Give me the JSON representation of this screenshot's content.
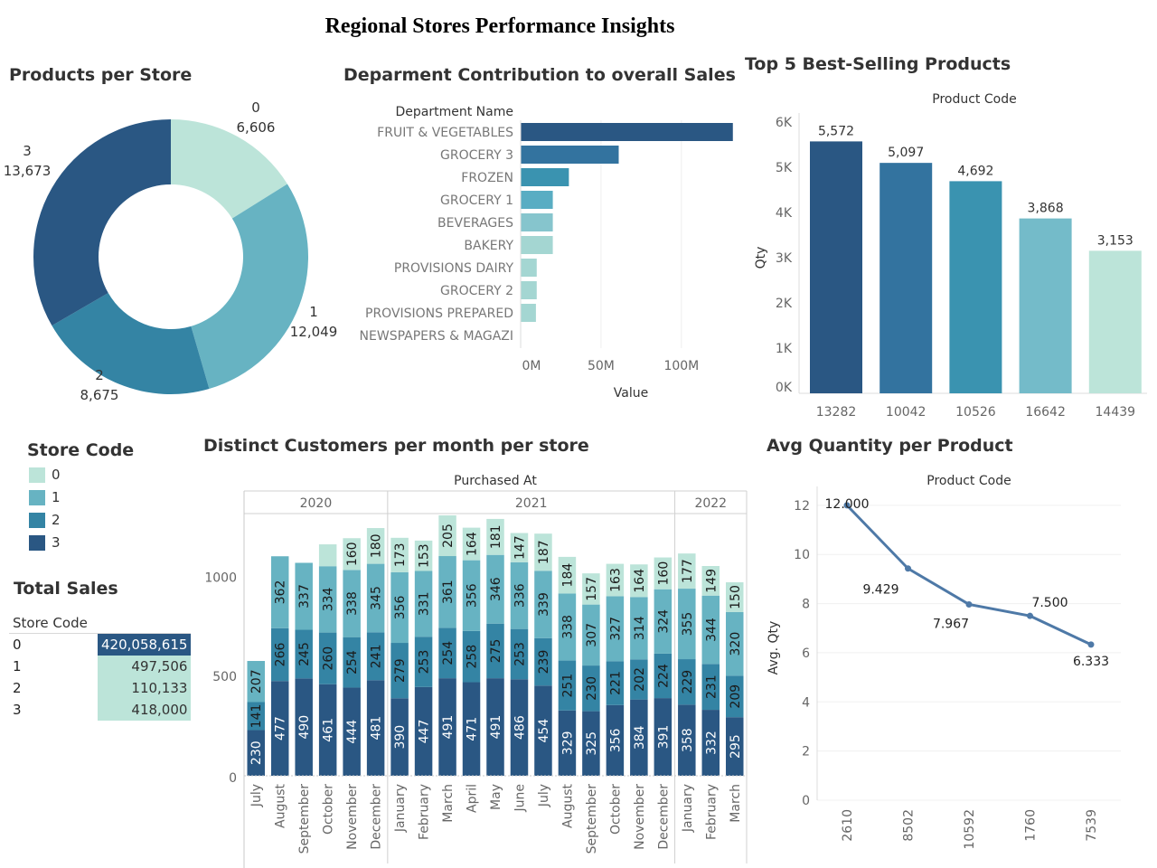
{
  "title": "Regional Stores Performance Insights",
  "colors": {
    "store_0": "#BCE4D9",
    "store_1": "#67B3C2",
    "store_2": "#3484A4",
    "store_3": "#2A5783",
    "text_dark": "#333333",
    "axis_gray": "#666666"
  },
  "products_per_store": {
    "title": "Products per Store",
    "chart_data": {
      "type": "pie",
      "categories": [
        "0",
        "1",
        "2",
        "3"
      ],
      "values": [
        6606,
        12049,
        8675,
        13673
      ],
      "value_labels": [
        "6,606",
        "12,049",
        "8,675",
        "13,673"
      ],
      "donut": true
    }
  },
  "department": {
    "title": "Deparment Contribution to overall Sales",
    "chart_data": {
      "type": "bar",
      "orientation": "horizontal",
      "header": "Department Name",
      "categories": [
        "FRUIT & VEGETABLES",
        "GROCERY 3",
        "FROZEN",
        "GROCERY 1",
        "BEVERAGES",
        "BAKERY",
        "PROVISIONS DAIRY",
        "GROCERY 2",
        "PROVISIONS PREPARED",
        "NEWSPAPERS & MAGAZI"
      ],
      "values": [
        132,
        61,
        30,
        20,
        20,
        20,
        10,
        10,
        9.5,
        0.3
      ],
      "xlabel": "Value",
      "xticks": [
        "0M",
        "50M",
        "100M"
      ],
      "xtick_values": [
        0,
        50,
        100
      ],
      "xlim": [
        0,
        140
      ]
    }
  },
  "top5": {
    "title": "Top 5 Best-Selling Products",
    "chart_data": {
      "type": "bar",
      "header": "Product Code",
      "categories": [
        "13282",
        "10042",
        "10526",
        "16642",
        "14439"
      ],
      "values": [
        5572,
        5097,
        4692,
        3868,
        3153
      ],
      "value_labels": [
        "5,572",
        "5,097",
        "4,692",
        "3,868",
        "3,153"
      ],
      "ylabel": "Qty",
      "yticks": [
        "0K",
        "1K",
        "2K",
        "3K",
        "4K",
        "5K",
        "6K"
      ],
      "ytick_values": [
        0,
        1000,
        2000,
        3000,
        4000,
        5000,
        6000
      ],
      "ylim": [
        0,
        6000
      ],
      "bar_colors": [
        "#2A5783",
        "#33739F",
        "#3A93B0",
        "#74BBC9",
        "#BCE4D9"
      ]
    }
  },
  "store_legend": {
    "title": "Store Code",
    "items": [
      "0",
      "1",
      "2",
      "3"
    ]
  },
  "total_sales": {
    "title": "Total Sales",
    "header": "Store Code",
    "rows": [
      {
        "code": "0",
        "value": "420,058,615"
      },
      {
        "code": "1",
        "value": "497,506"
      },
      {
        "code": "2",
        "value": "110,133"
      },
      {
        "code": "3",
        "value": "418,000"
      }
    ]
  },
  "customers": {
    "title": "Distinct Customers per month per store",
    "chart_data": {
      "type": "bar",
      "stacked": true,
      "header": "Purchased At",
      "years": [
        {
          "label": "2020",
          "months": 6
        },
        {
          "label": "2021",
          "months": 12
        },
        {
          "label": "2022",
          "months": 3
        }
      ],
      "categories": [
        "July",
        "August",
        "September",
        "October",
        "November",
        "December",
        "January",
        "February",
        "March",
        "April",
        "May",
        "June",
        "July",
        "August",
        "September",
        "October",
        "November",
        "December",
        "January",
        "February",
        "March"
      ],
      "yticks": [
        "0",
        "500",
        "1000"
      ],
      "ytick_values": [
        0,
        500,
        1000
      ],
      "ylim": [
        0,
        1320
      ],
      "series": [
        {
          "name": "3",
          "values": [
            230,
            477,
            490,
            461,
            444,
            481,
            390,
            447,
            491,
            471,
            491,
            486,
            454,
            329,
            325,
            356,
            384,
            391,
            358,
            332,
            295
          ]
        },
        {
          "name": "2",
          "values": [
            141,
            266,
            245,
            260,
            254,
            241,
            279,
            253,
            254,
            258,
            275,
            253,
            239,
            251,
            230,
            221,
            202,
            224,
            229,
            231,
            209
          ]
        },
        {
          "name": "1",
          "values": [
            207,
            362,
            337,
            334,
            338,
            345,
            356,
            331,
            361,
            356,
            346,
            336,
            339,
            338,
            307,
            327,
            314,
            324,
            355,
            344,
            320
          ]
        },
        {
          "name": "0",
          "values": [
            null,
            null,
            null,
            110,
            160,
            180,
            173,
            153,
            205,
            164,
            181,
            147,
            187,
            184,
            157,
            163,
            164,
            160,
            177,
            149,
            150
          ]
        }
      ]
    }
  },
  "avg_qty": {
    "title": "Avg Quantity per Product",
    "chart_data": {
      "type": "line",
      "header": "Product Code",
      "categories": [
        "2610",
        "8502",
        "10592",
        "1760",
        "7539"
      ],
      "values": [
        12.0,
        9.429,
        7.967,
        7.5,
        6.333
      ],
      "value_labels": [
        "12.000",
        "9.429",
        "7.967",
        "7.500",
        "6.333"
      ],
      "ylabel": "Avg. Qty",
      "yticks": [
        "0",
        "2",
        "4",
        "6",
        "8",
        "10",
        "12"
      ],
      "ytick_values": [
        0,
        2,
        4,
        6,
        8,
        10,
        12
      ],
      "ylim": [
        0,
        12.4
      ]
    }
  }
}
